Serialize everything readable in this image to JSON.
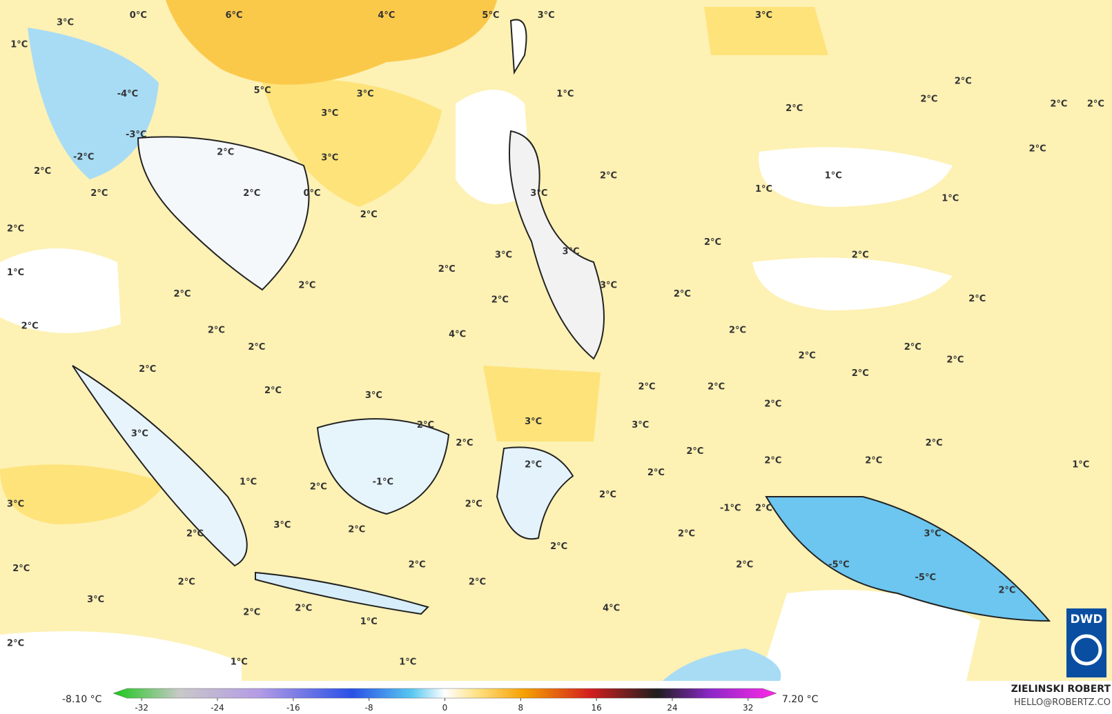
{
  "map": {
    "labels": [
      "0°C",
      "6°C",
      "4°C",
      "5°C",
      "3°C",
      "3°C",
      "3°C",
      "1°C",
      "-4°C",
      "5°C",
      "3°C",
      "3°C",
      "-3°C",
      "1°C",
      "2°C",
      "2°C",
      "2°C",
      "2°C",
      "2°C",
      "2°C",
      "-2°C",
      "2°C",
      "3°C",
      "2°C",
      "2°C",
      "1°C",
      "1°C",
      "2°C",
      "2°C",
      "0°C",
      "3°C",
      "1°C",
      "2°C",
      "2°C",
      "2°C",
      "3°C",
      "3°C",
      "2°C",
      "1°C",
      "2°C",
      "2°C",
      "3°C",
      "2°C",
      "2°C",
      "2°C",
      "2°C",
      "2°C",
      "2°C",
      "4°C",
      "2°C",
      "2°C",
      "2°C",
      "2°C",
      "2°C",
      "2°C",
      "2°C",
      "2°C",
      "3°C",
      "2°C",
      "2°C",
      "2°C",
      "3°C",
      "2°C",
      "3°C",
      "3°C",
      "2°C",
      "2°C",
      "2°C",
      "2°C",
      "2°C",
      "2°C",
      "2°C",
      "1°C",
      "-1°C",
      "1°C",
      "2°C",
      "2°C",
      "3°C",
      "2°C",
      "-1°C",
      "2°C",
      "3°C",
      "2°C",
      "2°C",
      "3°C",
      "2°C",
      "2°C",
      "-5°C",
      "-5°C",
      "2°C",
      "2°C",
      "2°C",
      "2°C",
      "2°C",
      "2°C",
      "3°C",
      "2°C",
      "2°C",
      "4°C",
      "1°C",
      "2°C",
      "1°C",
      "1°C"
    ],
    "colorbar": {
      "min_label": "-8.10 °C",
      "max_label": "7.20 °C",
      "lim": [
        -35,
        35
      ],
      "ticks": [
        -32,
        -24,
        -16,
        -8,
        0,
        8,
        16,
        24,
        32
      ]
    },
    "credit": {
      "author": "ZIELINSKI ROBERT",
      "contact": "HELLO@ROBERTZ.CO",
      "logo": "DWD"
    }
  }
}
